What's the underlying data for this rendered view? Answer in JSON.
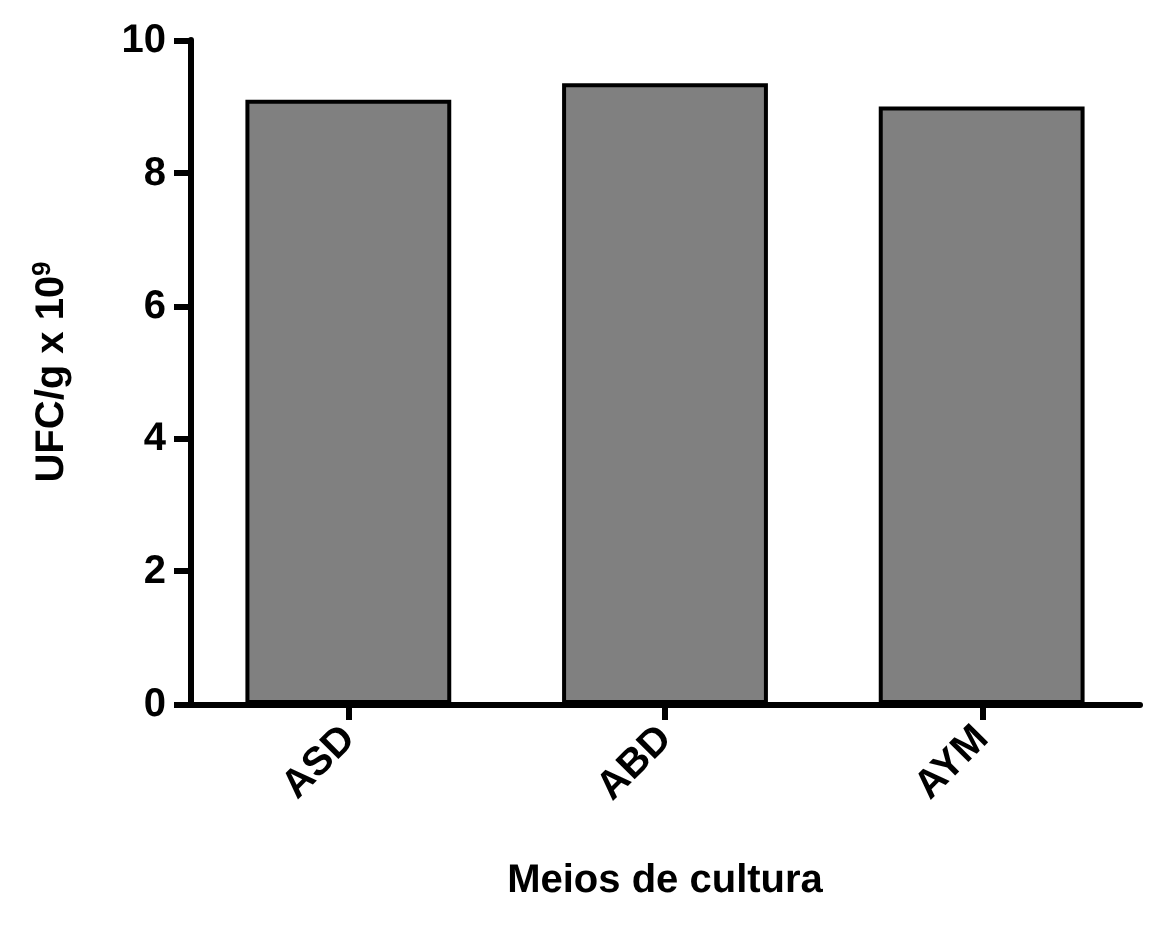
{
  "chart_data": {
    "type": "bar",
    "xlabel": "Meios de cultura",
    "ylabel": "UFC/g x 10$^{9}$",
    "categories": [
      "ASD",
      "ABD",
      "AYM"
    ],
    "values": [
      9.1,
      9.35,
      9.0
    ],
    "color": "#808080",
    "ylim": [
      0,
      10
    ],
    "yticks": [
      0,
      2,
      4,
      6,
      8,
      10
    ],
    "grid": false
  }
}
